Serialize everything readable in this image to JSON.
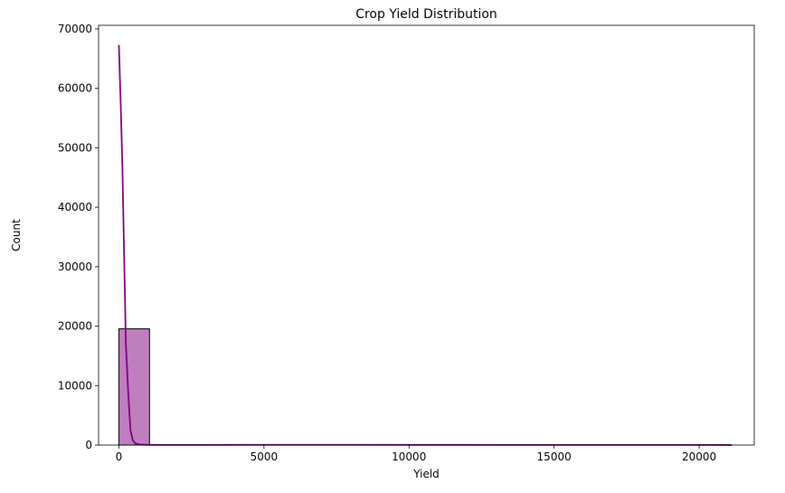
{
  "chart_data": {
    "type": "bar",
    "title": "Crop Yield Distribution",
    "xlabel": "Yield",
    "ylabel": "Count",
    "xlim": [
      -700,
      21900
    ],
    "ylim": [
      0,
      70600
    ],
    "xticks": [
      0,
      5000,
      10000,
      15000,
      20000
    ],
    "yticks": [
      0,
      10000,
      20000,
      30000,
      40000,
      50000,
      60000,
      70000
    ],
    "grid": false,
    "colors": {
      "bar_fill": "#BF7FBF",
      "bar_edge": "#000000",
      "kde_line": "#800080"
    },
    "histogram": {
      "bin_edges": [
        0,
        1056,
        2112,
        3168,
        4224,
        5280,
        6336,
        7392,
        8448,
        9504,
        10560,
        11616,
        12672,
        13728,
        14784,
        15840,
        16896,
        17952,
        19008,
        20064,
        21120
      ],
      "counts": [
        19550,
        20,
        10,
        20,
        15,
        50,
        30,
        25,
        20,
        20,
        15,
        20,
        40,
        15,
        10,
        10,
        10,
        5,
        5,
        5
      ]
    },
    "kde": {
      "x": [
        0,
        60,
        120,
        180,
        240,
        320,
        400,
        480,
        560,
        700,
        900,
        1200,
        2000,
        5000,
        10000,
        15000,
        21120
      ],
      "y": [
        67300,
        58000,
        47000,
        32000,
        17000,
        9000,
        2500,
        800,
        300,
        100,
        50,
        30,
        20,
        40,
        30,
        25,
        10
      ]
    }
  }
}
